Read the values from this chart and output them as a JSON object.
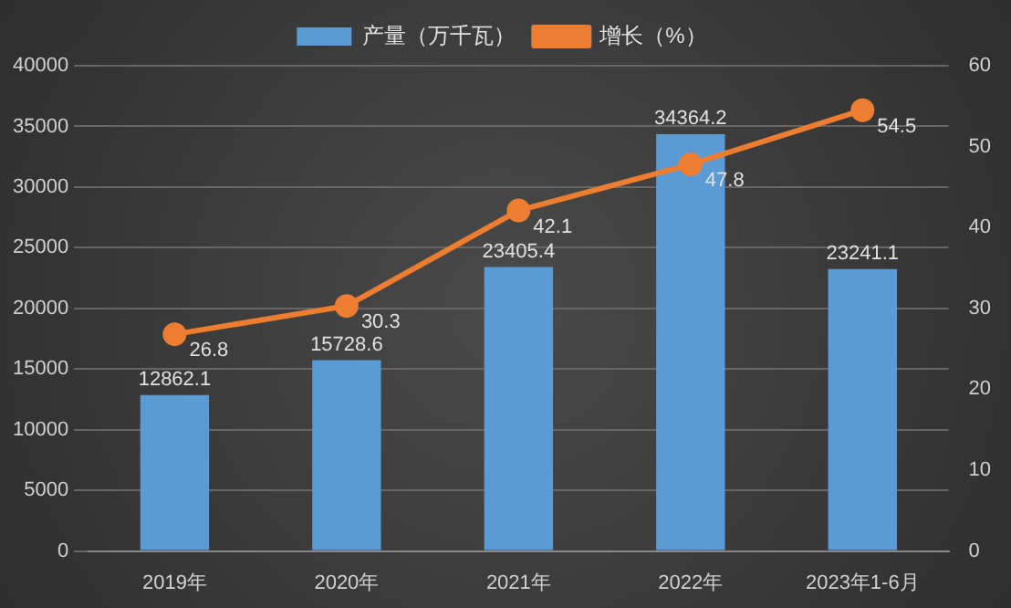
{
  "chart_data": {
    "type": "bar",
    "categories": [
      "2019年",
      "2020年",
      "2021年",
      "2022年",
      "2023年1-6月"
    ],
    "series": [
      {
        "name": "产量（万千瓦）",
        "color": "#5b9bd5",
        "values": [
          12862.1,
          15728.6,
          23405.4,
          34364.2,
          23241.1
        ]
      },
      {
        "name": "增长（%）",
        "type": "line",
        "axis": "y2",
        "color": "#ed7d31",
        "values": [
          26.8,
          30.3,
          42.1,
          47.8,
          54.5
        ]
      }
    ],
    "ylim": [
      0,
      40000
    ],
    "yticks": [
      0,
      5000,
      10000,
      15000,
      20000,
      25000,
      30000,
      35000,
      40000
    ],
    "y2lim": [
      0,
      60
    ],
    "y2ticks": [
      0,
      10,
      20,
      30,
      40,
      50,
      60
    ],
    "grid": "y",
    "legend": "top",
    "marker": "circle",
    "data_labels": true
  }
}
